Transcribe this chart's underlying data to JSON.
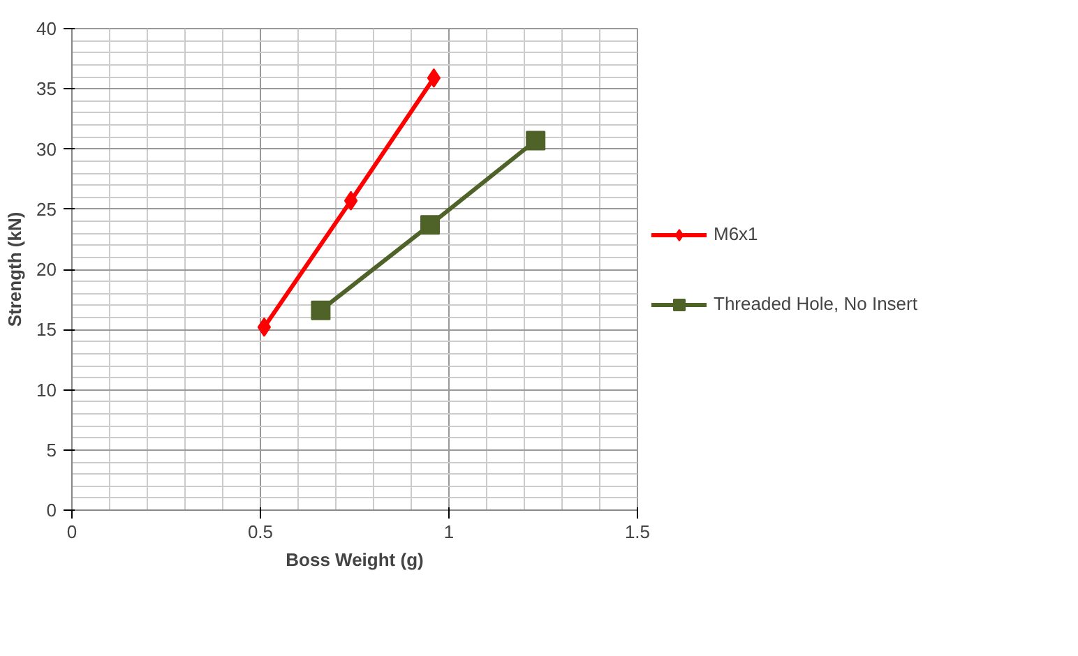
{
  "chart_data": {
    "type": "line",
    "xlabel": "Boss Weight (g)",
    "ylabel": "Strength (kN)",
    "xlim": [
      0,
      1.5
    ],
    "xticks": [
      0,
      0.5,
      1,
      1.5
    ],
    "ylim": [
      0,
      40
    ],
    "yticks": [
      0,
      5,
      10,
      15,
      20,
      25,
      30,
      35,
      40
    ],
    "grid": true,
    "legend": "right",
    "series": [
      {
        "name": "M6x1",
        "color": "#ff0000",
        "marker": "diamond",
        "x": [
          0.51,
          0.74,
          0.96
        ],
        "values": [
          15.2,
          25.7,
          35.9
        ]
      },
      {
        "name": "Threaded Hole, No Insert",
        "color": "#4f6228",
        "marker": "square",
        "x": [
          0.66,
          0.95,
          1.23
        ],
        "values": [
          16.6,
          23.7,
          30.7
        ]
      }
    ]
  }
}
